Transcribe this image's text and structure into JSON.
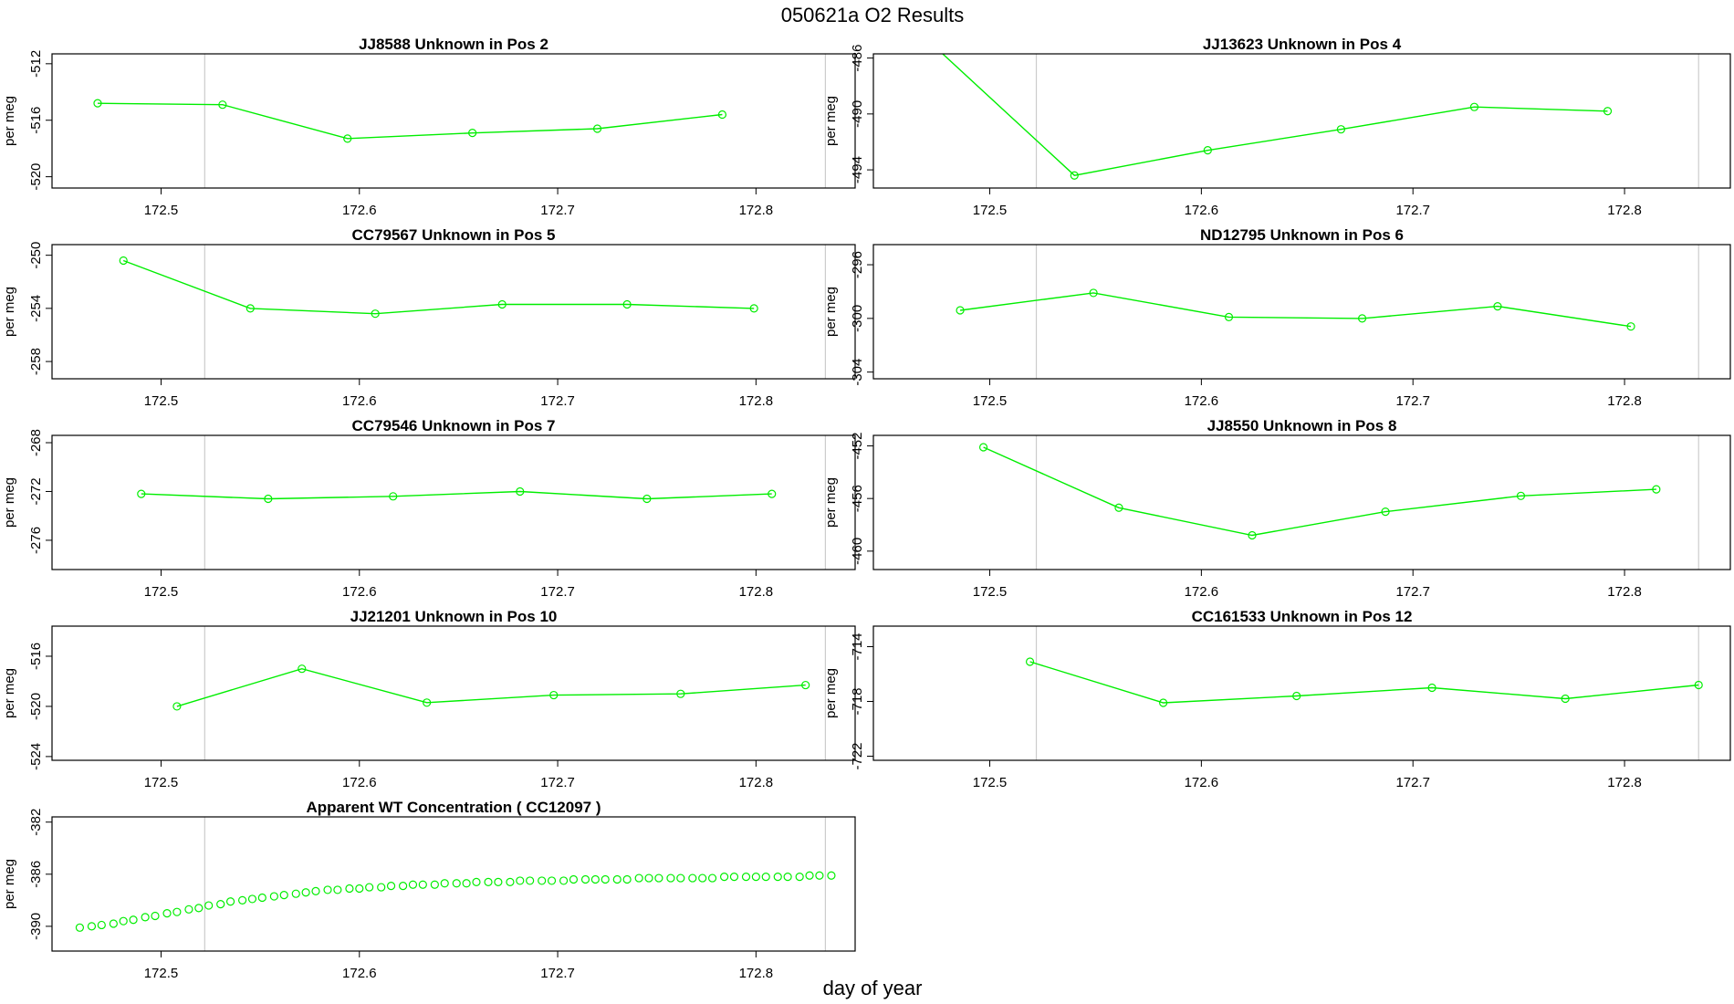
{
  "figure": {
    "title": "050621a  O2 Results",
    "xlabel": "day of year",
    "ylabel": "per meg"
  },
  "colors": {
    "series": "#00ee00",
    "frame": "#000000",
    "marker_lines": "#cccccc"
  },
  "chart_data": [
    {
      "type": "line",
      "title": "JJ8588    Unknown in Pos 2",
      "xlabel": "",
      "ylabel": "per meg",
      "xlim": [
        172.445,
        172.85
      ],
      "ylim": [
        -520.8,
        -511.3
      ],
      "xticks": [
        172.5,
        172.6,
        172.7,
        172.8
      ],
      "yticks": [
        -512,
        -516,
        -520
      ],
      "vlines": [
        172.522,
        172.835
      ],
      "x": [
        172.468,
        172.531,
        172.594,
        172.657,
        172.72,
        172.783
      ],
      "y": [
        -514.8,
        -514.9,
        -517.3,
        -516.9,
        -516.6,
        -515.6
      ]
    },
    {
      "type": "line",
      "title": "JJ13623    Unknown in Pos 4",
      "xlabel": "",
      "ylabel": "per meg",
      "xlim": [
        172.445,
        172.85
      ],
      "ylim": [
        -495.3,
        -485.7
      ],
      "xticks": [
        172.5,
        172.6,
        172.7,
        172.8
      ],
      "yticks": [
        -486,
        -490,
        -494
      ],
      "vlines": [
        172.522,
        172.835
      ],
      "x": [
        172.472,
        172.54,
        172.603,
        172.666,
        172.729,
        172.792
      ],
      "y": [
        -484.9,
        -494.4,
        -492.6,
        -491.1,
        -489.5,
        -489.8
      ]
    },
    {
      "type": "line",
      "title": "CC79567    Unknown in Pos 5",
      "xlabel": "",
      "ylabel": "per meg",
      "xlim": [
        172.445,
        172.85
      ],
      "ylim": [
        -259.3,
        -249.2
      ],
      "xticks": [
        172.5,
        172.6,
        172.7,
        172.8
      ],
      "yticks": [
        -250,
        -254,
        -258
      ],
      "vlines": [
        172.522,
        172.835
      ],
      "x": [
        172.481,
        172.545,
        172.608,
        172.672,
        172.735,
        172.799
      ],
      "y": [
        -250.4,
        -254.0,
        -254.4,
        -253.7,
        -253.7,
        -254.0
      ]
    },
    {
      "type": "line",
      "title": "ND12795    Unknown in Pos 6",
      "xlabel": "",
      "ylabel": "per meg",
      "xlim": [
        172.445,
        172.85
      ],
      "ylim": [
        -304.5,
        -294.5
      ],
      "xticks": [
        172.5,
        172.6,
        172.7,
        172.8
      ],
      "yticks": [
        -296,
        -300,
        -304
      ],
      "vlines": [
        172.522,
        172.835
      ],
      "x": [
        172.486,
        172.549,
        172.613,
        172.676,
        172.74,
        172.803
      ],
      "y": [
        -299.4,
        -298.1,
        -299.9,
        -300.0,
        -299.1,
        -300.6
      ]
    },
    {
      "type": "line",
      "title": "CC79546    Unknown in Pos 7",
      "xlabel": "",
      "ylabel": "per meg",
      "xlim": [
        172.445,
        172.85
      ],
      "ylim": [
        -278.4,
        -267.4
      ],
      "xticks": [
        172.5,
        172.6,
        172.7,
        172.8
      ],
      "yticks": [
        -268,
        -272,
        -276
      ],
      "vlines": [
        172.522,
        172.835
      ],
      "x": [
        172.49,
        172.554,
        172.617,
        172.681,
        172.745,
        172.808
      ],
      "y": [
        -272.2,
        -272.6,
        -272.4,
        -272.0,
        -272.6,
        -272.2
      ]
    },
    {
      "type": "line",
      "title": "JJ8550    Unknown in Pos 8",
      "xlabel": "",
      "ylabel": "per meg",
      "xlim": [
        172.445,
        172.85
      ],
      "ylim": [
        -461.4,
        -451.2
      ],
      "xticks": [
        172.5,
        172.6,
        172.7,
        172.8
      ],
      "yticks": [
        -452,
        -456,
        -460
      ],
      "vlines": [
        172.522,
        172.835
      ],
      "x": [
        172.497,
        172.561,
        172.624,
        172.687,
        172.751,
        172.815
      ],
      "y": [
        -452.1,
        -456.7,
        -458.8,
        -457.0,
        -455.8,
        -455.3
      ]
    },
    {
      "type": "line",
      "title": "JJ21201    Unknown in Pos 10",
      "xlabel": "",
      "ylabel": "per meg",
      "xlim": [
        172.445,
        172.85
      ],
      "ylim": [
        -524.3,
        -513.6
      ],
      "xticks": [
        172.5,
        172.6,
        172.7,
        172.8
      ],
      "yticks": [
        -516,
        -520,
        -524
      ],
      "vlines": [
        172.522,
        172.835
      ],
      "x": [
        172.508,
        172.571,
        172.634,
        172.698,
        172.762,
        172.825
      ],
      "y": [
        -520.0,
        -517.0,
        -519.7,
        -519.1,
        -519.0,
        -518.3
      ]
    },
    {
      "type": "line",
      "title": "CC161533    Unknown in Pos 12",
      "xlabel": "",
      "ylabel": "per meg",
      "xlim": [
        172.445,
        172.85
      ],
      "ylim": [
        -722.3,
        -712.5
      ],
      "xticks": [
        172.5,
        172.6,
        172.7,
        172.8
      ],
      "yticks": [
        -714,
        -718,
        -722
      ],
      "vlines": [
        172.522,
        172.835
      ],
      "x": [
        172.519,
        172.582,
        172.645,
        172.709,
        172.772,
        172.835
      ],
      "y": [
        -715.1,
        -718.1,
        -717.6,
        -717.0,
        -717.8,
        -716.8
      ]
    },
    {
      "type": "scatter",
      "title": "Apparent WT Concentration ( CC12097 )",
      "xlabel": "day of year",
      "ylabel": "per meg",
      "xlim": [
        172.445,
        172.85
      ],
      "ylim": [
        -391.9,
        -381.6
      ],
      "xticks": [
        172.5,
        172.6,
        172.7,
        172.8
      ],
      "yticks": [
        -382,
        -386,
        -390
      ],
      "vlines": [
        172.522,
        172.835
      ],
      "x": [
        172.459,
        172.465,
        172.47,
        172.476,
        172.481,
        172.486,
        172.492,
        172.497,
        172.503,
        172.508,
        172.514,
        172.519,
        172.524,
        172.53,
        172.535,
        172.541,
        172.546,
        172.551,
        172.557,
        172.562,
        172.568,
        172.573,
        172.578,
        172.584,
        172.589,
        172.595,
        172.6,
        172.605,
        172.611,
        172.616,
        172.622,
        172.627,
        172.632,
        172.638,
        172.643,
        172.649,
        172.654,
        172.659,
        172.665,
        172.67,
        172.676,
        172.681,
        172.686,
        172.692,
        172.697,
        172.703,
        172.708,
        172.714,
        172.719,
        172.724,
        172.73,
        172.735,
        172.741,
        172.746,
        172.751,
        172.757,
        172.762,
        172.768,
        172.773,
        172.778,
        172.784,
        172.789,
        172.795,
        172.8,
        172.805,
        172.811,
        172.816,
        172.822,
        172.827,
        172.832,
        172.838
      ],
      "y": [
        -390.1,
        -390.0,
        -389.9,
        -389.8,
        -389.6,
        -389.5,
        -389.3,
        -389.2,
        -389.0,
        -388.9,
        -388.7,
        -388.6,
        -388.4,
        -388.3,
        -388.1,
        -388.0,
        -387.9,
        -387.8,
        -387.7,
        -387.6,
        -387.5,
        -387.4,
        -387.3,
        -387.2,
        -387.2,
        -387.1,
        -387.1,
        -387.0,
        -387.0,
        -386.9,
        -386.9,
        -386.8,
        -386.8,
        -386.8,
        -386.7,
        -386.7,
        -386.7,
        -386.6,
        -386.6,
        -386.6,
        -386.6,
        -386.5,
        -386.5,
        -386.5,
        -386.5,
        -386.5,
        -386.4,
        -386.4,
        -386.4,
        -386.4,
        -386.4,
        -386.4,
        -386.3,
        -386.3,
        -386.3,
        -386.3,
        -386.3,
        -386.3,
        -386.3,
        -386.3,
        -386.2,
        -386.2,
        -386.2,
        -386.2,
        -386.2,
        -386.2,
        -386.2,
        -386.2,
        -386.1,
        -386.1,
        -386.1
      ]
    }
  ]
}
